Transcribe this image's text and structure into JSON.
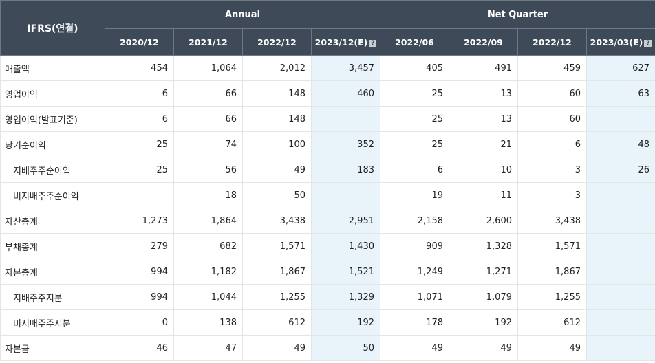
{
  "table": {
    "corner_label": "IFRS(연결)",
    "groups": {
      "annual": "Annual",
      "quarter": "Net Quarter"
    },
    "columns": [
      "2020/12",
      "2021/12",
      "2022/12",
      "2023/12(E)",
      "2022/06",
      "2022/09",
      "2022/12",
      "2023/03(E)"
    ],
    "help_icon": "?",
    "rows": [
      {
        "label": "매출액",
        "values": [
          "454",
          "1,064",
          "2,012",
          "3,457",
          "405",
          "491",
          "459",
          "627"
        ]
      },
      {
        "label": "영업이익",
        "values": [
          "6",
          "66",
          "148",
          "460",
          "25",
          "13",
          "60",
          "63"
        ]
      },
      {
        "label": "영업이익(발표기준)",
        "values": [
          "6",
          "66",
          "148",
          "",
          "25",
          "13",
          "60",
          ""
        ]
      },
      {
        "label": "당기순이익",
        "values": [
          "25",
          "74",
          "100",
          "352",
          "25",
          "21",
          "6",
          "48"
        ]
      },
      {
        "label": "지배주주순이익",
        "values": [
          "25",
          "56",
          "49",
          "183",
          "6",
          "10",
          "3",
          "26"
        ]
      },
      {
        "label": "비지배주주순이익",
        "values": [
          "",
          "18",
          "50",
          "",
          "19",
          "11",
          "3",
          ""
        ]
      },
      {
        "label": "자산총계",
        "values": [
          "1,273",
          "1,864",
          "3,438",
          "2,951",
          "2,158",
          "2,600",
          "3,438",
          ""
        ]
      },
      {
        "label": "부채총계",
        "values": [
          "279",
          "682",
          "1,571",
          "1,430",
          "909",
          "1,328",
          "1,571",
          ""
        ]
      },
      {
        "label": "자본총계",
        "values": [
          "994",
          "1,182",
          "1,867",
          "1,521",
          "1,249",
          "1,271",
          "1,867",
          ""
        ]
      },
      {
        "label": "지배주주지분",
        "values": [
          "994",
          "1,044",
          "1,255",
          "1,329",
          "1,071",
          "1,079",
          "1,255",
          ""
        ]
      },
      {
        "label": "비지배주주지분",
        "values": [
          "0",
          "138",
          "612",
          "192",
          "178",
          "192",
          "612",
          ""
        ]
      },
      {
        "label": "자본금",
        "values": [
          "46",
          "47",
          "49",
          "50",
          "49",
          "49",
          "49",
          ""
        ]
      }
    ]
  }
}
